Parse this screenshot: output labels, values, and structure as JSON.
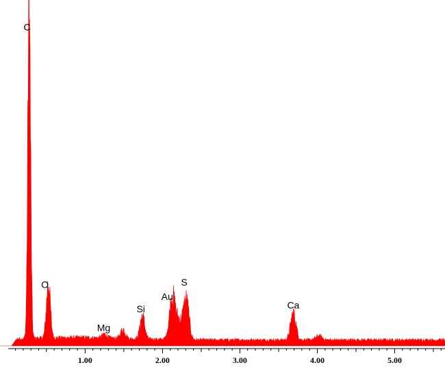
{
  "chart_data": {
    "type": "area",
    "title": "",
    "xlabel": "",
    "ylabel": "",
    "xlim": [
      -0.1,
      5.65
    ],
    "ylim": [
      0,
      1
    ],
    "x_ticks": [
      {
        "value": 1.0,
        "label": "1.00"
      },
      {
        "value": 2.0,
        "label": "2.00"
      },
      {
        "value": 3.0,
        "label": "3.00"
      },
      {
        "value": 4.0,
        "label": "4.00"
      },
      {
        "value": 5.0,
        "label": "5.00"
      }
    ],
    "fill_color": "#ff0000",
    "axis_color": "#000000",
    "grid": false,
    "baseline": 0.018,
    "peaks": [
      {
        "element": "C",
        "x": 0.277,
        "height": 0.995,
        "width": 0.018
      },
      {
        "element": "O",
        "x": 0.525,
        "height": 0.17,
        "width": 0.025
      },
      {
        "element": "Mg",
        "x": 1.253,
        "height": 0.012,
        "width": 0.03
      },
      {
        "element": "Si",
        "x": 1.74,
        "height": 0.07,
        "width": 0.03
      },
      {
        "element": "Au",
        "x": 2.123,
        "height": 0.105,
        "width": 0.035
      },
      {
        "element": "S",
        "x": 2.308,
        "height": 0.11,
        "width": 0.035
      },
      {
        "element": "Ca",
        "x": 3.69,
        "height": 0.08,
        "width": 0.035
      }
    ],
    "minor_peaks": [
      {
        "x": 1.49,
        "height": 0.028,
        "width": 0.03
      },
      {
        "x": 2.2,
        "height": 0.06,
        "width": 0.06
      },
      {
        "x": 4.02,
        "height": 0.012,
        "width": 0.04
      }
    ],
    "peak_labels": [
      {
        "text": "C",
        "x": 0.25,
        "level": 0.965
      },
      {
        "text": "O",
        "x": 0.48,
        "level": 0.177
      },
      {
        "text": "Mg",
        "x": 1.24,
        "level": 0.045
      },
      {
        "text": "Si",
        "x": 1.72,
        "level": 0.103
      },
      {
        "text": "Au",
        "x": 2.06,
        "level": 0.14
      },
      {
        "text": "S",
        "x": 2.28,
        "level": 0.184
      },
      {
        "text": "Ca",
        "x": 3.69,
        "level": 0.114
      }
    ]
  }
}
